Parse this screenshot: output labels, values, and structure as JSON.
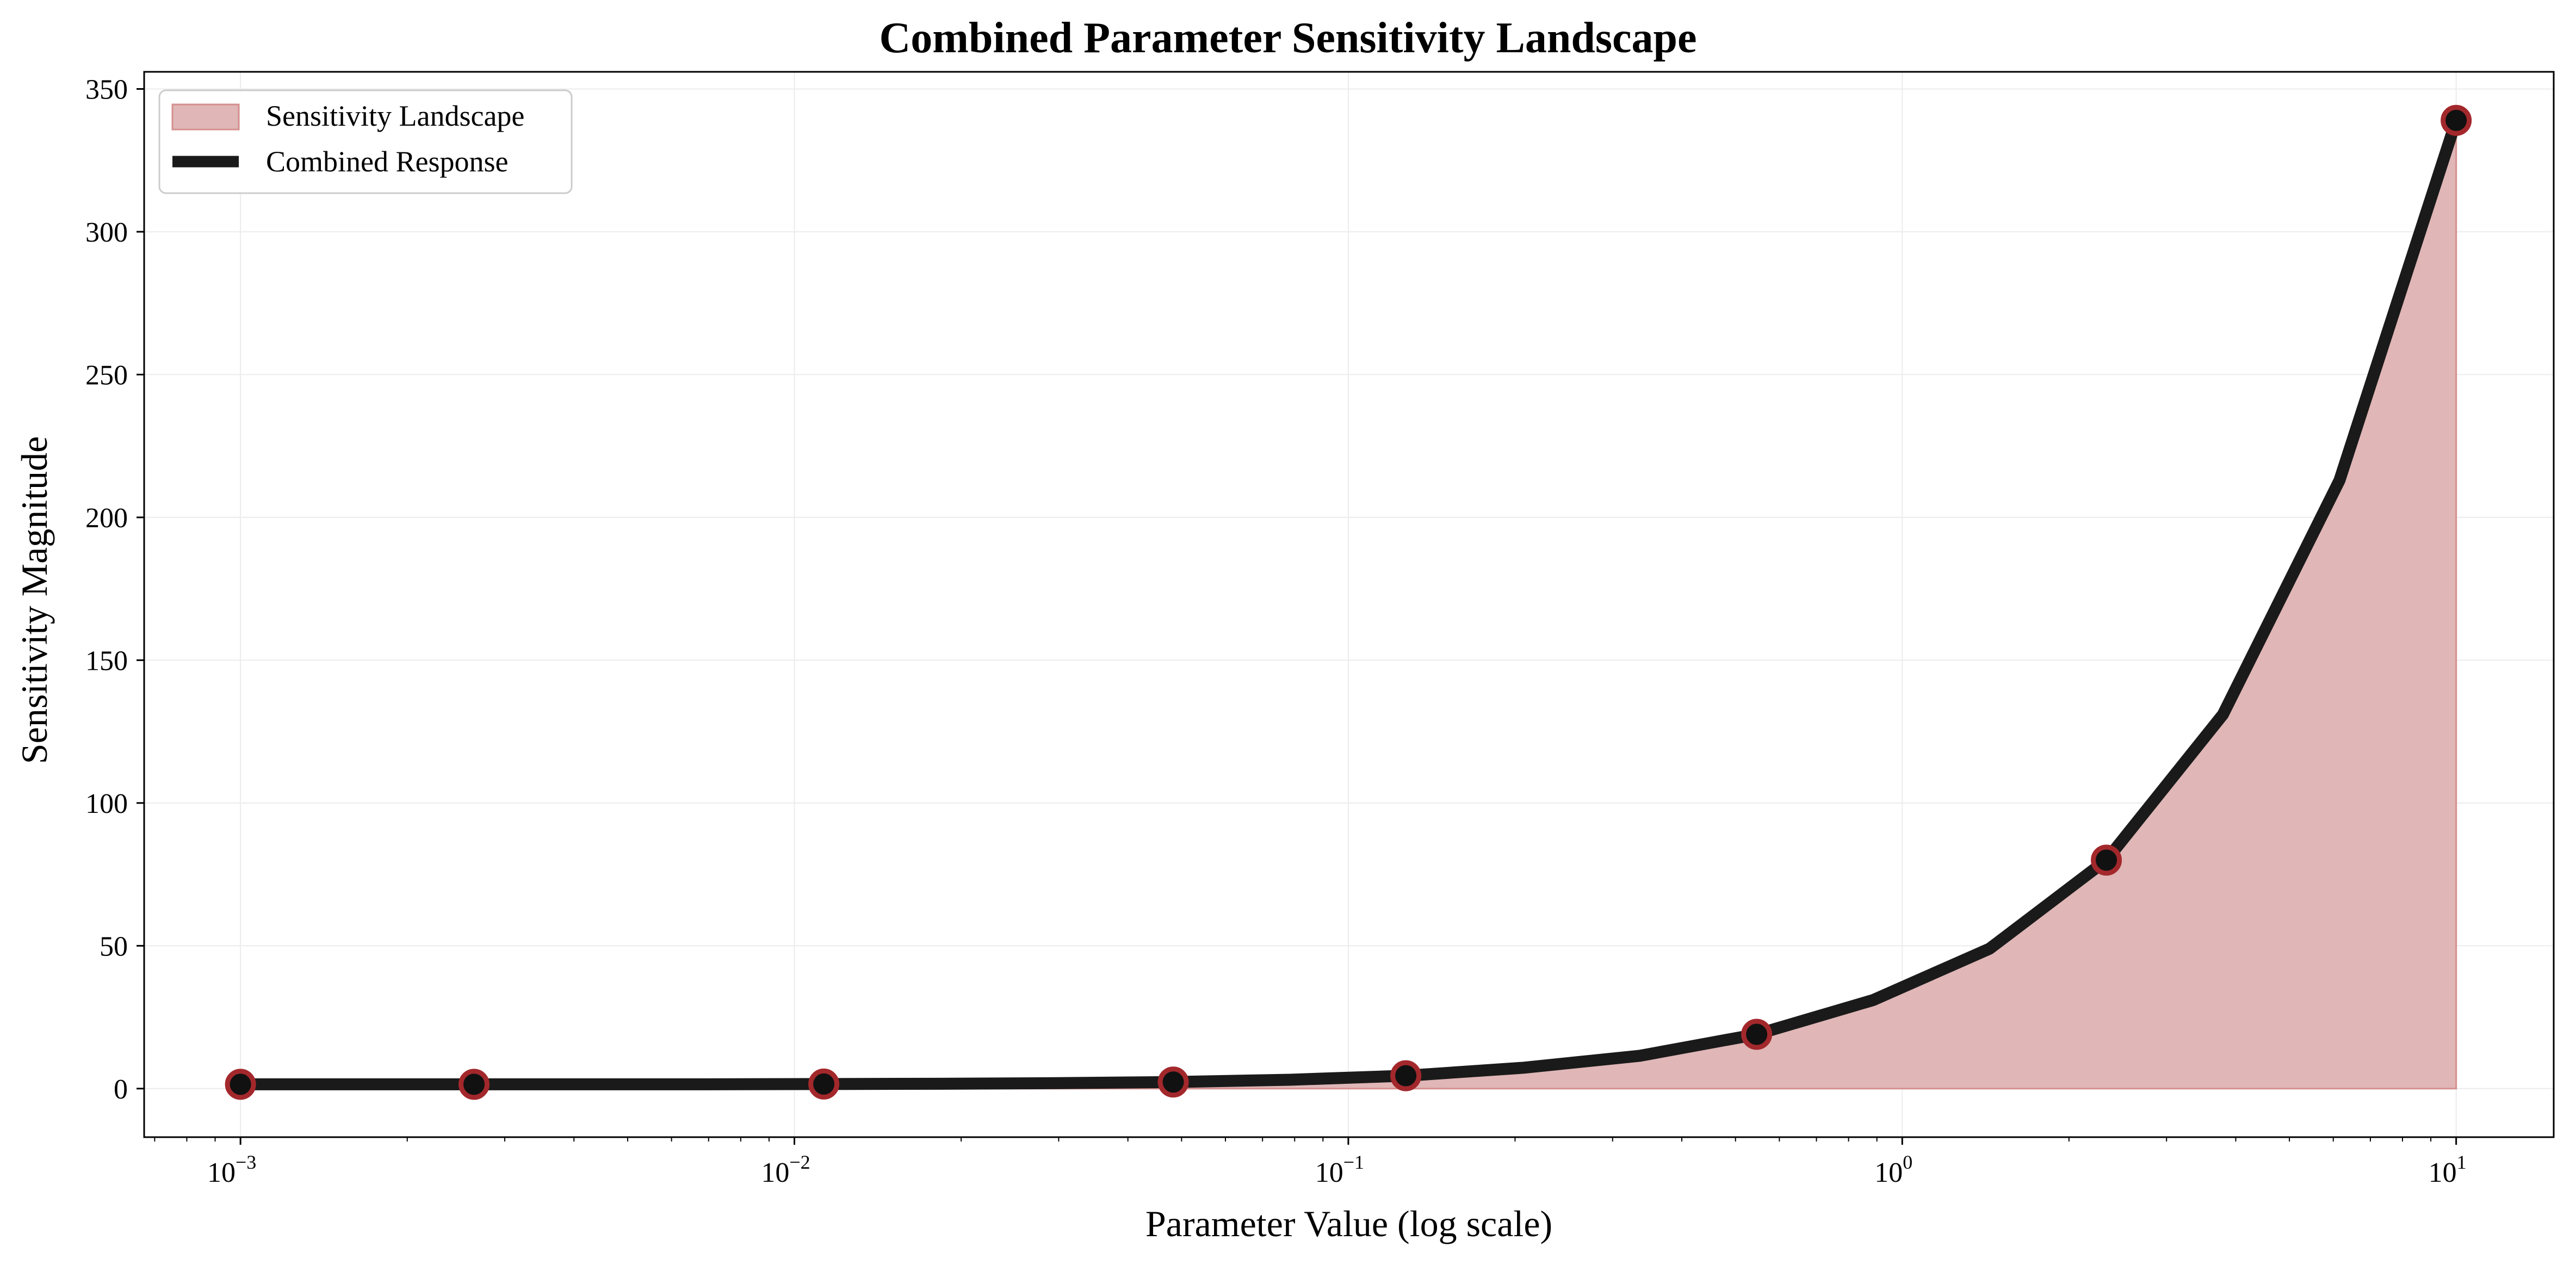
{
  "chart_data": {
    "type": "area",
    "title": "Combined Parameter Sensitivity Landscape",
    "xlabel": "Parameter Value (log scale)",
    "ylabel": "Sensitivity Magnitude",
    "x_scale": "log",
    "xlim": [
      0.00067,
      15.0
    ],
    "ylim": [
      -17,
      356
    ],
    "x_ticks": [
      {
        "base": "10",
        "exp": "−3",
        "value": 0.001
      },
      {
        "base": "10",
        "exp": "−2",
        "value": 0.01
      },
      {
        "base": "10",
        "exp": "−1",
        "value": 0.1
      },
      {
        "base": "10",
        "exp": "0",
        "value": 1
      },
      {
        "base": "10",
        "exp": "1",
        "value": 10
      }
    ],
    "y_ticks": [
      "0",
      "50",
      "100",
      "150",
      "200",
      "250",
      "300",
      "350"
    ],
    "grid": true,
    "legend_position": "top-left",
    "series": [
      {
        "name": "Sensitivity Landscape",
        "kind": "area",
        "color": "#e0b6b6",
        "edge_color": "#d58f8f"
      },
      {
        "name": "Combined Response",
        "kind": "line",
        "color": "#1a1a1a",
        "x": [
          0.001,
          0.0016,
          0.00264,
          0.00428,
          0.00695,
          0.0113,
          0.0183,
          0.0297,
          0.0483,
          0.0785,
          0.127,
          0.207,
          0.336,
          0.546,
          0.886,
          1.438,
          2.336,
          3.793,
          6.158,
          10.0
        ],
        "y": [
          1.5,
          1.5,
          1.5,
          1.5,
          1.5,
          1.6,
          1.7,
          1.9,
          2.3,
          3.1,
          4.5,
          7.3,
          11.5,
          19.0,
          31.0,
          49.0,
          80.0,
          131.0,
          213.0,
          339.0
        ]
      }
    ],
    "markers": {
      "x": [
        0.001,
        0.00264,
        0.0113,
        0.0483,
        0.127,
        0.546,
        2.336,
        10.0
      ],
      "y": [
        1.5,
        1.5,
        1.6,
        2.3,
        4.5,
        19.0,
        80.0,
        339.0
      ],
      "face_color": "#111111",
      "edge_color": "#a3282c"
    }
  }
}
